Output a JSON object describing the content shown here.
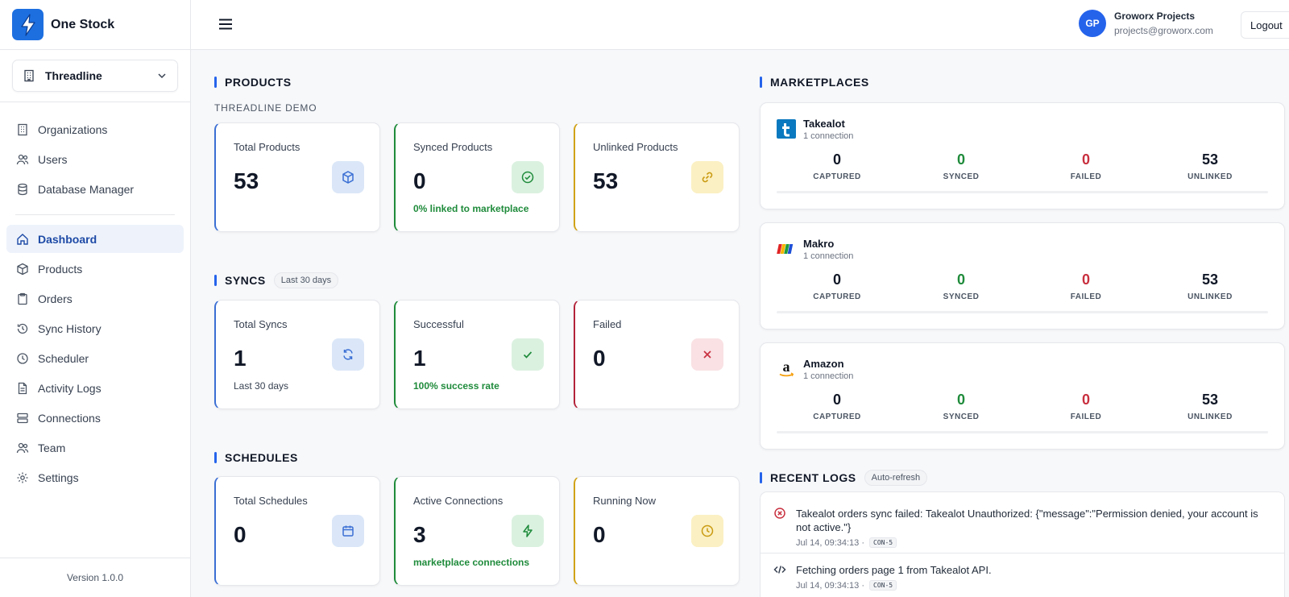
{
  "brand": {
    "name": "One Stock"
  },
  "org": {
    "selected": "Threadline"
  },
  "nav": {
    "top": [
      "Organizations",
      "Users",
      "Database Manager"
    ],
    "main": [
      "Dashboard",
      "Products",
      "Orders",
      "Sync History",
      "Scheduler",
      "Activity Logs",
      "Connections",
      "Team",
      "Settings"
    ],
    "active": "Dashboard"
  },
  "version": "Version 1.0.0",
  "user": {
    "initials": "GP",
    "name": "Groworx Projects",
    "email": "projects@groworx.com"
  },
  "header": {
    "logout_label": "Logout"
  },
  "products": {
    "title": "PRODUCTS",
    "subtitle": "THREADLINE DEMO",
    "cards": [
      {
        "label": "Total Products",
        "value": "53",
        "note": "",
        "icon": "cube-icon"
      },
      {
        "label": "Synced Products",
        "value": "0",
        "note": "0% linked to marketplace",
        "icon": "check-circle-icon"
      },
      {
        "label": "Unlinked Products",
        "value": "53",
        "note": "",
        "icon": "link-icon"
      }
    ]
  },
  "syncs": {
    "title": "SYNCS",
    "badge": "Last 30 days",
    "cards": [
      {
        "label": "Total Syncs",
        "value": "1",
        "note": "Last 30 days",
        "icon": "refresh-icon"
      },
      {
        "label": "Successful",
        "value": "1",
        "note": "100% success rate",
        "icon": "check-icon"
      },
      {
        "label": "Failed",
        "value": "0",
        "note": "",
        "icon": "x-icon"
      }
    ]
  },
  "schedules": {
    "title": "SCHEDULES",
    "cards": [
      {
        "label": "Total Schedules",
        "value": "0",
        "note": "",
        "icon": "calendar-icon"
      },
      {
        "label": "Active Connections",
        "value": "3",
        "note": "marketplace connections",
        "icon": "bolt-icon"
      },
      {
        "label": "Running Now",
        "value": "0",
        "note": "",
        "icon": "clock-icon"
      }
    ]
  },
  "marketplaces": {
    "title": "MARKETPLACES",
    "stat_labels": [
      "CAPTURED",
      "SYNCED",
      "FAILED",
      "UNLINKED"
    ],
    "items": [
      {
        "name": "Takealot",
        "connections": "1 connection",
        "stats": [
          "0",
          "0",
          "0",
          "53"
        ]
      },
      {
        "name": "Makro",
        "connections": "1 connection",
        "stats": [
          "0",
          "0",
          "0",
          "53"
        ]
      },
      {
        "name": "Amazon",
        "connections": "1 connection",
        "stats": [
          "0",
          "0",
          "0",
          "53"
        ]
      }
    ]
  },
  "logs": {
    "title": "RECENT LOGS",
    "badge": "Auto-refresh",
    "items": [
      {
        "message": "Takealot orders sync failed: Takealot Unauthorized: {\"message\":\"Permission denied, your account is not active.\"}",
        "time": "Jul 14, 09:34:13 ·",
        "tag": "CON-5",
        "icon": "error-circle-icon"
      },
      {
        "message": "Fetching orders page 1 from Takealot API.",
        "time": "Jul 14, 09:34:13 ·",
        "tag": "CON-5",
        "icon": "code-icon"
      }
    ]
  },
  "colors": {
    "accent": "#2563eb",
    "success": "#1f8b3b",
    "danger": "#c8303f",
    "warning": "#d1a317"
  }
}
